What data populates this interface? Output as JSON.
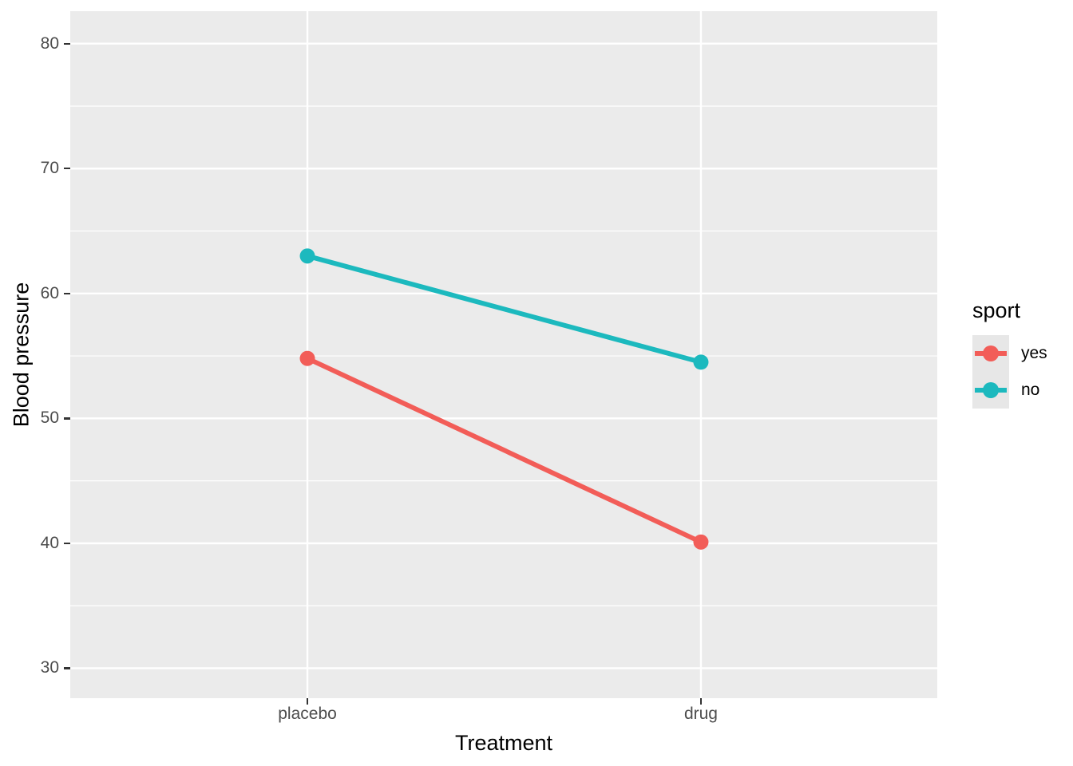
{
  "figure": {
    "background": "#FFFFFF",
    "panel_background": "#EBEBEB",
    "grid_color": "#FFFFFF",
    "tick_color": "#333333",
    "axis_text_color": "#4D4D4D",
    "title_color": "#000000",
    "legend_key_background": "#E7E7E7"
  },
  "chart_data": {
    "type": "line",
    "title": "",
    "xlabel": "Treatment",
    "ylabel": "Blood pressure",
    "categories": [
      "placebo",
      "drug"
    ],
    "series": [
      {
        "name": "yes",
        "color": "#F25D58",
        "values": [
          54.8,
          40.1
        ]
      },
      {
        "name": "no",
        "color": "#1CB9BE",
        "values": [
          63.0,
          54.5
        ]
      }
    ],
    "ylim": [
      27.6,
      82.6
    ],
    "y_major_ticks": [
      30,
      40,
      50,
      60,
      70,
      80
    ],
    "y_minor_ticks": [
      35,
      45,
      55,
      65,
      75
    ],
    "grid": true,
    "legend_title": "sport",
    "legend_position": "right",
    "point_radius": 9.5,
    "line_width": 6
  }
}
